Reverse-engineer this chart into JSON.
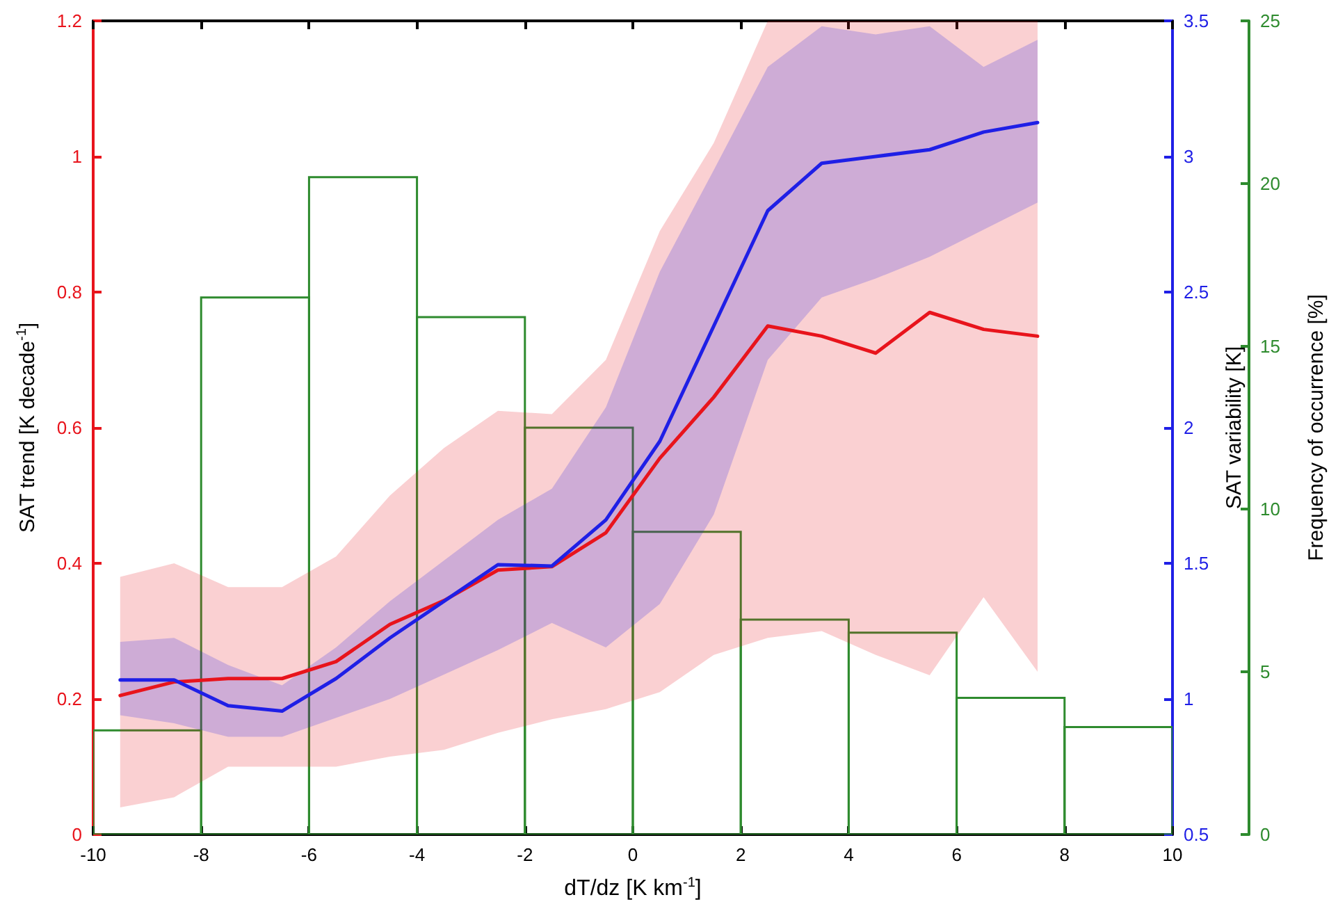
{
  "chart_data": {
    "type": "line",
    "xlabel": "dT/dz [K km$^{-1}$]",
    "ylabel": "SAT trend [K decade$^{-1}$]",
    "y2label": "SAT variability [K]",
    "y3label": "Frequency of occurrence [%]",
    "x": [
      -9.5,
      -8.5,
      -7.5,
      -6.5,
      -5.5,
      -4.5,
      -3.5,
      -2.5,
      -1.5,
      -0.5,
      0.5,
      1.5,
      2.5,
      3.5,
      4.5,
      5.5,
      6.5,
      7.5
    ],
    "series": [
      {
        "type": "histogram",
        "axis": "y3",
        "color": "#2e8b2e",
        "bins": [
          -10,
          -8,
          -6,
          -4,
          -2,
          0,
          2,
          4,
          6,
          8,
          10
        ],
        "values": [
          3.2,
          16.5,
          20.2,
          15.9,
          12.5,
          9.3,
          6.6,
          6.2,
          4.2,
          3.3
        ]
      },
      {
        "axis": "y",
        "color": "#e8141c",
        "values": [
          0.205,
          0.225,
          0.23,
          0.23,
          0.255,
          0.31,
          0.345,
          0.39,
          0.395,
          0.445,
          0.555,
          0.645,
          0.75,
          0.735,
          0.71,
          0.77,
          0.745,
          0.735
        ],
        "lower": [
          0.04,
          0.055,
          0.1,
          0.1,
          0.1,
          0.115,
          0.125,
          0.15,
          0.17,
          0.185,
          0.21,
          0.265,
          0.29,
          0.3,
          0.265,
          0.235,
          0.35,
          0.24
        ],
        "upper": [
          0.38,
          0.4,
          0.365,
          0.365,
          0.41,
          0.5,
          0.57,
          0.625,
          0.62,
          0.7,
          0.89,
          1.02,
          1.2,
          1.2,
          1.2,
          1.2,
          1.2,
          1.2
        ]
      },
      {
        "axis": "y2",
        "color": "#1f1fe6",
        "values": [
          1.07,
          1.07,
          0.975,
          0.955,
          1.075,
          1.225,
          1.36,
          1.495,
          1.49,
          1.66,
          1.95,
          2.375,
          2.8,
          2.975,
          3.0,
          3.025,
          3.09,
          3.125
        ],
        "lower": [
          0.94,
          0.91,
          0.86,
          0.86,
          0.93,
          1.0,
          1.09,
          1.18,
          1.28,
          1.19,
          1.35,
          1.68,
          2.25,
          2.48,
          2.55,
          2.63,
          2.73,
          2.83
        ],
        "upper": [
          1.21,
          1.225,
          1.125,
          1.05,
          1.19,
          1.36,
          1.51,
          1.66,
          1.775,
          2.075,
          2.575,
          2.95,
          3.33,
          3.48,
          3.45,
          3.48,
          3.33,
          3.43
        ]
      }
    ],
    "xlim": [
      -10,
      10
    ],
    "xticks": [
      -10,
      -8,
      -6,
      -4,
      -2,
      0,
      2,
      4,
      6,
      8,
      10
    ],
    "ylim": [
      0,
      1.2
    ],
    "yticks": [
      0,
      0.2,
      0.4,
      0.6,
      0.8,
      1,
      1.2
    ],
    "y2lim": [
      0.5,
      3.5
    ],
    "y2ticks": [
      0.5,
      1,
      1.5,
      2,
      2.5,
      3,
      3.5
    ],
    "y3lim": [
      0,
      25
    ],
    "y3ticks": [
      0,
      5,
      10,
      15,
      20,
      25
    ],
    "grid": false,
    "marker": "none",
    "line_style": "solid"
  }
}
